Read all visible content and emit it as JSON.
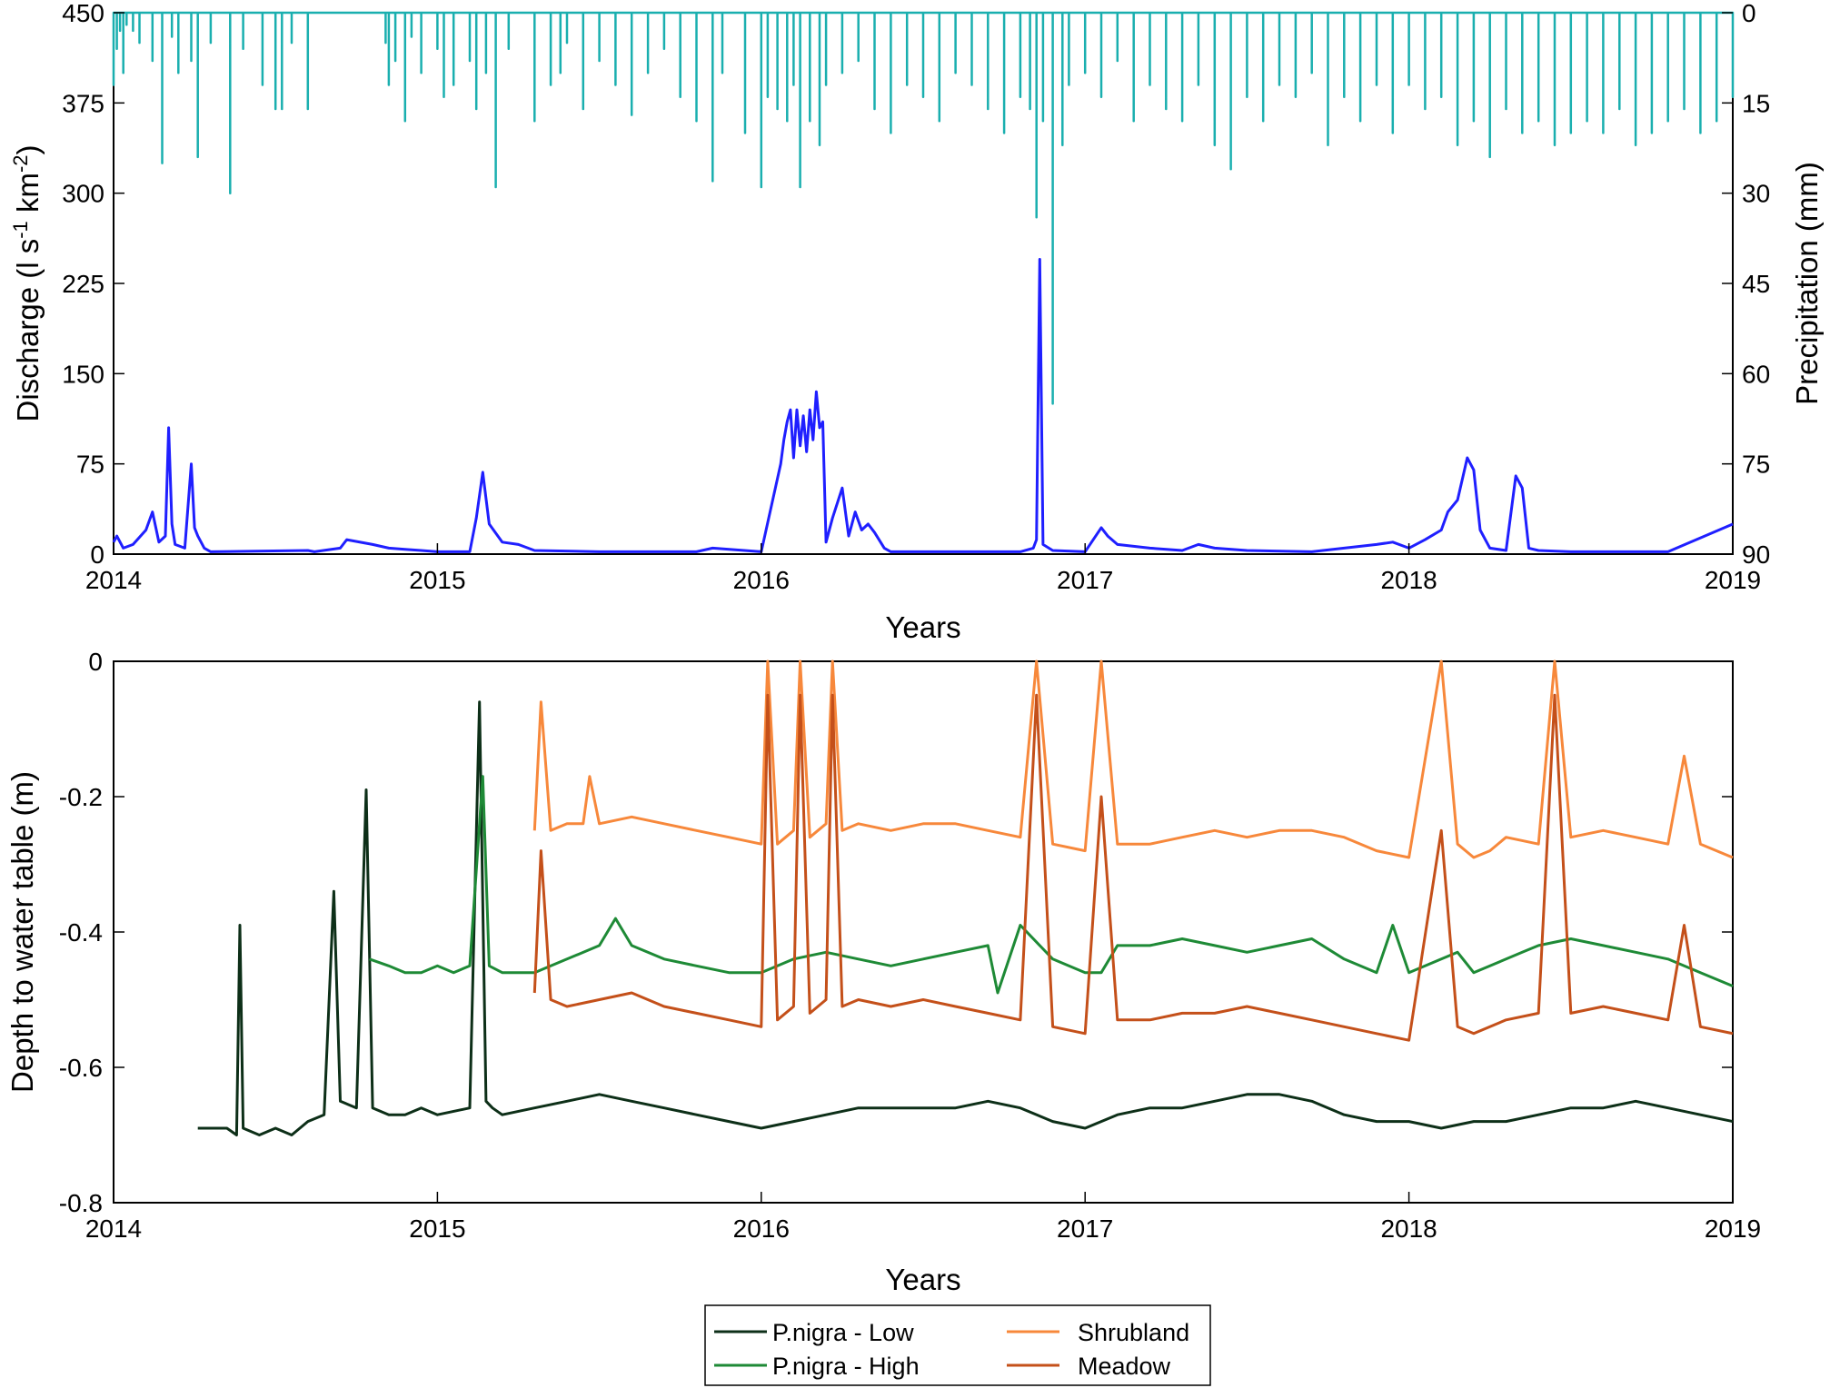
{
  "chart_data": [
    {
      "type": "line",
      "title": "",
      "xlabel": "Years",
      "ylabel_left": "Discharge (l s-1 km-2)",
      "ylabel_right": "Precipitation (mm)",
      "xlim": [
        2014,
        2019
      ],
      "ylim_left": [
        0,
        450
      ],
      "ylim_right_reversed": [
        0,
        90
      ],
      "x_ticks": [
        "2014",
        "2015",
        "2016",
        "2017",
        "2018",
        "2019"
      ],
      "y_ticks_left": [
        "0",
        "75",
        "150",
        "225",
        "300",
        "375",
        "450"
      ],
      "y_ticks_right": [
        "90",
        "75",
        "60",
        "45",
        "30",
        "15",
        "0"
      ],
      "grid": false,
      "series": [
        {
          "key": "precipitation",
          "axis": "right-reversed",
          "color": "#1aafaf",
          "x": [
            2014.0,
            2014.01,
            2014.02,
            2014.03,
            2014.04,
            2014.06,
            2014.08,
            2014.12,
            2014.15,
            2014.18,
            2014.2,
            2014.24,
            2014.26,
            2014.3,
            2014.36,
            2014.4,
            2014.46,
            2014.5,
            2014.52,
            2014.55,
            2014.6,
            2014.84,
            2014.85,
            2014.87,
            2014.9,
            2014.92,
            2014.95,
            2015.0,
            2015.02,
            2015.05,
            2015.1,
            2015.12,
            2015.15,
            2015.18,
            2015.22,
            2015.3,
            2015.35,
            2015.38,
            2015.4,
            2015.45,
            2015.5,
            2015.55,
            2015.6,
            2015.65,
            2015.7,
            2015.75,
            2015.8,
            2015.85,
            2015.88,
            2015.95,
            2016.0,
            2016.02,
            2016.05,
            2016.08,
            2016.1,
            2016.12,
            2016.15,
            2016.18,
            2016.2,
            2016.25,
            2016.3,
            2016.35,
            2016.4,
            2016.45,
            2016.5,
            2016.55,
            2016.6,
            2016.65,
            2016.7,
            2016.75,
            2016.8,
            2016.83,
            2016.85,
            2016.87,
            2016.9,
            2016.93,
            2016.95,
            2017.0,
            2017.05,
            2017.1,
            2017.15,
            2017.2,
            2017.25,
            2017.3,
            2017.35,
            2017.4,
            2017.45,
            2017.5,
            2017.55,
            2017.6,
            2017.65,
            2017.7,
            2017.75,
            2017.8,
            2017.85,
            2017.9,
            2017.95,
            2018.0,
            2018.05,
            2018.1,
            2018.15,
            2018.2,
            2018.25,
            2018.3,
            2018.35,
            2018.4,
            2018.45,
            2018.5,
            2018.55,
            2018.6,
            2018.65,
            2018.7,
            2018.75,
            2018.8,
            2018.85,
            2018.9,
            2018.95,
            2019.0
          ],
          "values": [
            12,
            6,
            3,
            10,
            2,
            3,
            5,
            8,
            25,
            4,
            10,
            8,
            24,
            5,
            30,
            6,
            12,
            16,
            16,
            5,
            16,
            5,
            12,
            8,
            18,
            4,
            10,
            6,
            14,
            12,
            8,
            16,
            10,
            29,
            6,
            18,
            12,
            10,
            5,
            16,
            8,
            12,
            17,
            10,
            6,
            14,
            18,
            28,
            10,
            20,
            29,
            14,
            16,
            18,
            12,
            29,
            18,
            22,
            12,
            10,
            8,
            16,
            20,
            12,
            14,
            18,
            10,
            12,
            16,
            20,
            14,
            16,
            34,
            18,
            65,
            22,
            12,
            10,
            14,
            8,
            18,
            12,
            16,
            18,
            12,
            22,
            26,
            14,
            18,
            12,
            14,
            10,
            22,
            14,
            18,
            12,
            20,
            12,
            16,
            14,
            22,
            18,
            24,
            16,
            20,
            18,
            22,
            20,
            18,
            20,
            16,
            22,
            20,
            18,
            16,
            20,
            18,
            14
          ]
        },
        {
          "key": "discharge",
          "axis": "left",
          "color": "#1f1fff",
          "x": [
            2014.0,
            2014.01,
            2014.03,
            2014.06,
            2014.1,
            2014.12,
            2014.14,
            2014.16,
            2014.17,
            2014.18,
            2014.19,
            2014.22,
            2014.24,
            2014.25,
            2014.26,
            2014.28,
            2014.3,
            2014.6,
            2014.62,
            2014.7,
            2014.72,
            2014.8,
            2014.85,
            2014.9,
            2014.95,
            2015.0,
            2015.1,
            2015.12,
            2015.14,
            2015.16,
            2015.2,
            2015.25,
            2015.3,
            2015.5,
            2015.8,
            2015.85,
            2016.0,
            2016.06,
            2016.07,
            2016.08,
            2016.09,
            2016.1,
            2016.11,
            2016.12,
            2016.13,
            2016.14,
            2016.15,
            2016.16,
            2016.17,
            2016.18,
            2016.19,
            2016.2,
            2016.22,
            2016.25,
            2016.27,
            2016.29,
            2016.31,
            2016.33,
            2016.35,
            2016.38,
            2016.4,
            2016.5,
            2016.8,
            2016.84,
            2016.85,
            2016.86,
            2016.87,
            2016.9,
            2017.0,
            2017.05,
            2017.07,
            2017.1,
            2017.2,
            2017.3,
            2017.35,
            2017.4,
            2017.5,
            2017.7,
            2017.8,
            2017.9,
            2017.95,
            2018.0,
            2018.05,
            2018.1,
            2018.12,
            2018.15,
            2018.18,
            2018.2,
            2018.22,
            2018.25,
            2018.3,
            2018.33,
            2018.35,
            2018.37,
            2018.4,
            2018.5,
            2018.8,
            2019.0
          ],
          "values": [
            10,
            15,
            5,
            8,
            20,
            35,
            10,
            15,
            105,
            25,
            8,
            5,
            75,
            22,
            15,
            5,
            2,
            3,
            2,
            5,
            12,
            8,
            5,
            4,
            3,
            2,
            2,
            30,
            68,
            25,
            10,
            8,
            3,
            2,
            2,
            5,
            2,
            75,
            95,
            110,
            120,
            80,
            120,
            90,
            115,
            85,
            120,
            95,
            135,
            105,
            110,
            10,
            30,
            55,
            15,
            35,
            20,
            25,
            18,
            5,
            2,
            2,
            2,
            5,
            12,
            245,
            8,
            3,
            2,
            22,
            15,
            8,
            5,
            3,
            8,
            5,
            3,
            2,
            5,
            8,
            10,
            5,
            12,
            20,
            35,
            45,
            80,
            70,
            20,
            5,
            3,
            65,
            55,
            5,
            3,
            2,
            2,
            25
          ]
        }
      ]
    },
    {
      "type": "line",
      "title": "",
      "xlabel": "Years",
      "ylabel": "Depth to water table (m)",
      "xlim": [
        2014,
        2019
      ],
      "ylim": [
        -0.8,
        0
      ],
      "x_ticks": [
        "2014",
        "2015",
        "2016",
        "2017",
        "2018",
        "2019"
      ],
      "y_ticks": [
        "0",
        "-0.2",
        "-0.4",
        "-0.6",
        "-0.8"
      ],
      "grid": false,
      "legend": {
        "placement": "bottom-center",
        "columns": 2
      },
      "series": [
        {
          "name": "P.nigra - Low",
          "color": "#0d2f18",
          "x": [
            2014.26,
            2014.3,
            2014.35,
            2014.38,
            2014.39,
            2014.4,
            2014.45,
            2014.5,
            2014.55,
            2014.6,
            2014.65,
            2014.68,
            2014.7,
            2014.75,
            2014.78,
            2014.8,
            2014.85,
            2014.9,
            2014.95,
            2015.0,
            2015.1,
            2015.13,
            2015.15,
            2015.17,
            2015.2,
            2015.3,
            2015.4,
            2015.5,
            2015.6,
            2015.7,
            2015.8,
            2015.9,
            2016.0,
            2016.1,
            2016.2,
            2016.3,
            2016.4,
            2016.5,
            2016.6,
            2016.7,
            2016.8,
            2016.9,
            2017.0,
            2017.1,
            2017.2,
            2017.3,
            2017.4,
            2017.5,
            2017.6,
            2017.7,
            2017.8,
            2017.9,
            2018.0,
            2018.1,
            2018.2,
            2018.3,
            2018.4,
            2018.5,
            2018.6,
            2018.7,
            2018.8,
            2018.9,
            2019.0
          ],
          "values": [
            -0.69,
            -0.69,
            -0.69,
            -0.7,
            -0.39,
            -0.69,
            -0.7,
            -0.69,
            -0.7,
            -0.68,
            -0.67,
            -0.34,
            -0.65,
            -0.66,
            -0.19,
            -0.66,
            -0.67,
            -0.67,
            -0.66,
            -0.67,
            -0.66,
            -0.06,
            -0.65,
            -0.66,
            -0.67,
            -0.66,
            -0.65,
            -0.64,
            -0.65,
            -0.66,
            -0.67,
            -0.68,
            -0.69,
            -0.68,
            -0.67,
            -0.66,
            -0.66,
            -0.66,
            -0.66,
            -0.65,
            -0.66,
            -0.68,
            -0.69,
            -0.67,
            -0.66,
            -0.66,
            -0.65,
            -0.64,
            -0.64,
            -0.65,
            -0.67,
            -0.68,
            -0.68,
            -0.69,
            -0.68,
            -0.68,
            -0.67,
            -0.66,
            -0.66,
            -0.65,
            -0.66,
            -0.67,
            -0.68
          ]
        },
        {
          "name": "P.nigra - High",
          "color": "#1e8a36",
          "x": [
            2014.79,
            2014.85,
            2014.9,
            2014.95,
            2015.0,
            2015.05,
            2015.1,
            2015.14,
            2015.16,
            2015.2,
            2015.3,
            2015.4,
            2015.5,
            2015.55,
            2015.6,
            2015.7,
            2015.8,
            2015.9,
            2016.0,
            2016.1,
            2016.2,
            2016.3,
            2016.4,
            2016.5,
            2016.6,
            2016.7,
            2016.73,
            2016.8,
            2016.9,
            2017.0,
            2017.05,
            2017.1,
            2017.2,
            2017.3,
            2017.4,
            2017.5,
            2017.6,
            2017.7,
            2017.8,
            2017.9,
            2017.95,
            2018.0,
            2018.1,
            2018.15,
            2018.2,
            2018.3,
            2018.35,
            2018.4,
            2018.5,
            2018.6,
            2018.7,
            2018.8,
            2018.9,
            2019.0
          ],
          "values": [
            -0.44,
            -0.45,
            -0.46,
            -0.46,
            -0.45,
            -0.46,
            -0.45,
            -0.17,
            -0.45,
            -0.46,
            -0.46,
            -0.44,
            -0.42,
            -0.38,
            -0.42,
            -0.44,
            -0.45,
            -0.46,
            -0.46,
            -0.44,
            -0.43,
            -0.44,
            -0.45,
            -0.44,
            -0.43,
            -0.42,
            -0.49,
            -0.39,
            -0.44,
            -0.46,
            -0.46,
            -0.42,
            -0.42,
            -0.41,
            -0.42,
            -0.43,
            -0.42,
            -0.41,
            -0.44,
            -0.46,
            -0.39,
            -0.46,
            -0.44,
            -0.43,
            -0.46,
            -0.44,
            -0.43,
            -0.42,
            -0.41,
            -0.42,
            -0.43,
            -0.44,
            -0.46,
            -0.48
          ]
        },
        {
          "name": "Shrubland",
          "color": "#f7883b",
          "x": [
            2015.3,
            2015.32,
            2015.35,
            2015.4,
            2015.45,
            2015.47,
            2015.5,
            2015.6,
            2015.7,
            2015.8,
            2015.9,
            2016.0,
            2016.02,
            2016.05,
            2016.1,
            2016.12,
            2016.15,
            2016.2,
            2016.22,
            2016.25,
            2016.3,
            2016.4,
            2016.5,
            2016.6,
            2016.7,
            2016.8,
            2016.85,
            2016.9,
            2017.0,
            2017.05,
            2017.1,
            2017.2,
            2017.3,
            2017.4,
            2017.5,
            2017.6,
            2017.7,
            2017.8,
            2017.9,
            2018.0,
            2018.1,
            2018.15,
            2018.2,
            2018.25,
            2018.3,
            2018.4,
            2018.45,
            2018.5,
            2018.6,
            2018.7,
            2018.8,
            2018.85,
            2018.9,
            2019.0
          ],
          "values": [
            -0.25,
            -0.06,
            -0.25,
            -0.24,
            -0.24,
            -0.17,
            -0.24,
            -0.23,
            -0.24,
            -0.25,
            -0.26,
            -0.27,
            0.0,
            -0.27,
            -0.25,
            0.0,
            -0.26,
            -0.24,
            0.0,
            -0.25,
            -0.24,
            -0.25,
            -0.24,
            -0.24,
            -0.25,
            -0.26,
            0.0,
            -0.27,
            -0.28,
            0.0,
            -0.27,
            -0.27,
            -0.26,
            -0.25,
            -0.26,
            -0.25,
            -0.25,
            -0.26,
            -0.28,
            -0.29,
            0.0,
            -0.27,
            -0.29,
            -0.28,
            -0.26,
            -0.27,
            0.0,
            -0.26,
            -0.25,
            -0.26,
            -0.27,
            -0.14,
            -0.27,
            -0.29
          ]
        },
        {
          "name": "Meadow",
          "color": "#c4501a",
          "x": [
            2015.3,
            2015.32,
            2015.35,
            2015.4,
            2015.5,
            2015.6,
            2015.7,
            2015.8,
            2015.9,
            2016.0,
            2016.02,
            2016.05,
            2016.1,
            2016.12,
            2016.15,
            2016.2,
            2016.22,
            2016.25,
            2016.3,
            2016.4,
            2016.5,
            2016.6,
            2016.7,
            2016.8,
            2016.85,
            2016.9,
            2017.0,
            2017.05,
            2017.1,
            2017.2,
            2017.3,
            2017.4,
            2017.5,
            2017.6,
            2017.7,
            2017.8,
            2017.9,
            2018.0,
            2018.1,
            2018.15,
            2018.2,
            2018.3,
            2018.4,
            2018.45,
            2018.5,
            2018.6,
            2018.7,
            2018.8,
            2018.85,
            2018.9,
            2019.0
          ],
          "values": [
            -0.49,
            -0.28,
            -0.5,
            -0.51,
            -0.5,
            -0.49,
            -0.51,
            -0.52,
            -0.53,
            -0.54,
            -0.05,
            -0.53,
            -0.51,
            -0.05,
            -0.52,
            -0.5,
            -0.05,
            -0.51,
            -0.5,
            -0.51,
            -0.5,
            -0.51,
            -0.52,
            -0.53,
            -0.05,
            -0.54,
            -0.55,
            -0.2,
            -0.53,
            -0.53,
            -0.52,
            -0.52,
            -0.51,
            -0.52,
            -0.53,
            -0.54,
            -0.55,
            -0.56,
            -0.25,
            -0.54,
            -0.55,
            -0.53,
            -0.52,
            -0.05,
            -0.52,
            -0.51,
            -0.52,
            -0.53,
            -0.39,
            -0.54,
            -0.55
          ]
        }
      ]
    }
  ]
}
